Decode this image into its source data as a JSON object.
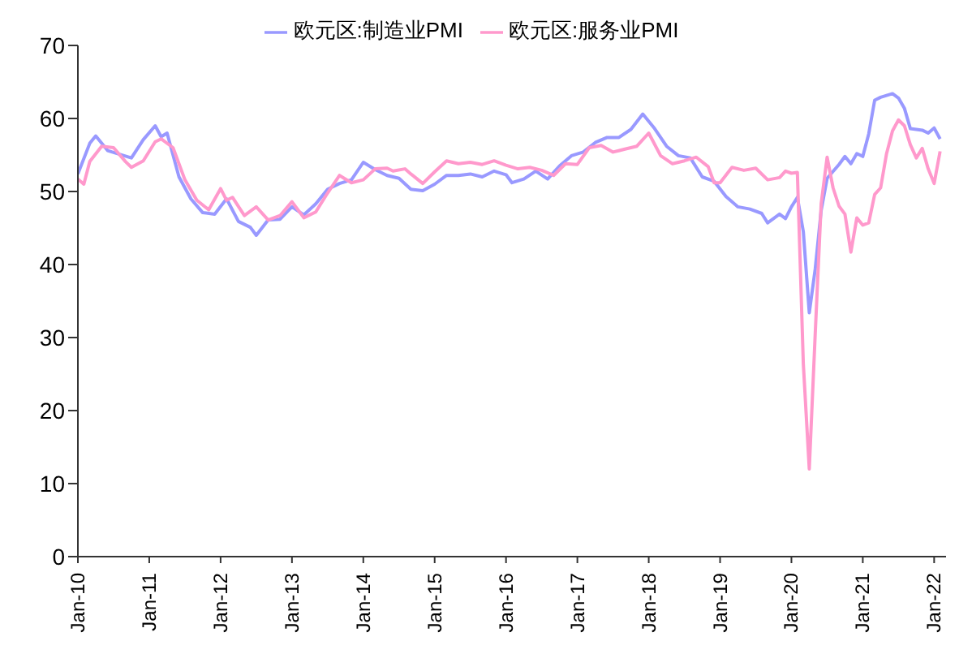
{
  "chart_data": {
    "type": "line",
    "legend": "top",
    "marker": "none",
    "line_style": "solid",
    "grid": false,
    "ylim": [
      0,
      70
    ],
    "yticks": [
      0,
      10,
      20,
      30,
      40,
      50,
      60,
      70
    ],
    "xlim": [
      "2010-01",
      "2022-03"
    ],
    "xticks": [
      {
        "value": "2010-01",
        "label": "Jan-10"
      },
      {
        "value": "2011-01",
        "label": "Jan-11"
      },
      {
        "value": "2012-01",
        "label": "Jan-12"
      },
      {
        "value": "2013-01",
        "label": "Jan-13"
      },
      {
        "value": "2014-01",
        "label": "Jan-14"
      },
      {
        "value": "2015-01",
        "label": "Jan-15"
      },
      {
        "value": "2016-01",
        "label": "Jan-16"
      },
      {
        "value": "2017-01",
        "label": "Jan-17"
      },
      {
        "value": "2018-01",
        "label": "Jan-18"
      },
      {
        "value": "2019-01",
        "label": "Jan-19"
      },
      {
        "value": "2020-01",
        "label": "Jan-20"
      },
      {
        "value": "2021-01",
        "label": "Jan-21"
      },
      {
        "value": "2022-01",
        "label": "Jan-22"
      }
    ],
    "series": [
      {
        "name": "欧元区:制造业PMI",
        "color": "#9999ff",
        "x": [
          "2010-01",
          "2010-03",
          "2010-04",
          "2010-06",
          "2010-08",
          "2010-10",
          "2010-12",
          "2011-02",
          "2011-03",
          "2011-04",
          "2011-06",
          "2011-08",
          "2011-10",
          "2011-12",
          "2012-02",
          "2012-04",
          "2012-06",
          "2012-07",
          "2012-09",
          "2012-11",
          "2013-01",
          "2013-03",
          "2013-05",
          "2013-07",
          "2013-09",
          "2013-11",
          "2014-01",
          "2014-03",
          "2014-05",
          "2014-07",
          "2014-09",
          "2014-11",
          "2015-01",
          "2015-03",
          "2015-05",
          "2015-07",
          "2015-09",
          "2015-11",
          "2016-01",
          "2016-02",
          "2016-04",
          "2016-06",
          "2016-08",
          "2016-10",
          "2016-12",
          "2017-02",
          "2017-04",
          "2017-06",
          "2017-08",
          "2017-10",
          "2017-12",
          "2018-02",
          "2018-04",
          "2018-06",
          "2018-08",
          "2018-10",
          "2018-12",
          "2019-02",
          "2019-04",
          "2019-06",
          "2019-08",
          "2019-09",
          "2019-11",
          "2019-12",
          "2020-01",
          "2020-02",
          "2020-03",
          "2020-04",
          "2020-05",
          "2020-06",
          "2020-07",
          "2020-09",
          "2020-10",
          "2020-11",
          "2020-12",
          "2021-01",
          "2021-02",
          "2021-03",
          "2021-04",
          "2021-06",
          "2021-07",
          "2021-08",
          "2021-09",
          "2021-11",
          "2021-12",
          "2022-01",
          "2022-02"
        ],
        "values": [
          52.4,
          56.6,
          57.6,
          55.6,
          55.1,
          54.6,
          57.1,
          59.0,
          57.5,
          58.0,
          52.0,
          49.0,
          47.1,
          46.9,
          49.0,
          45.9,
          45.1,
          44.0,
          46.1,
          46.2,
          47.9,
          46.8,
          48.3,
          50.3,
          51.1,
          51.6,
          54.0,
          53.0,
          52.2,
          51.8,
          50.3,
          50.1,
          51.0,
          52.2,
          52.2,
          52.4,
          52.0,
          52.8,
          52.3,
          51.2,
          51.7,
          52.8,
          51.7,
          53.5,
          54.9,
          55.4,
          56.7,
          57.4,
          57.4,
          58.5,
          60.6,
          58.6,
          56.2,
          54.9,
          54.6,
          52.0,
          51.4,
          49.3,
          47.9,
          47.6,
          47.0,
          45.7,
          46.9,
          46.3,
          47.9,
          49.2,
          44.5,
          33.4,
          39.4,
          47.4,
          51.8,
          53.7,
          54.8,
          53.8,
          55.2,
          54.8,
          57.9,
          62.5,
          62.9,
          63.4,
          62.8,
          61.4,
          58.6,
          58.4,
          58.0,
          58.7,
          57.2
        ]
      },
      {
        "name": "欧元区:服务业PMI",
        "color": "#ff99cc",
        "x": [
          "2010-01",
          "2010-02",
          "2010-03",
          "2010-05",
          "2010-07",
          "2010-09",
          "2010-10",
          "2010-12",
          "2011-02",
          "2011-03",
          "2011-05",
          "2011-07",
          "2011-09",
          "2011-11",
          "2012-01",
          "2012-02",
          "2012-03",
          "2012-05",
          "2012-07",
          "2012-09",
          "2012-11",
          "2013-01",
          "2013-03",
          "2013-05",
          "2013-07",
          "2013-09",
          "2013-11",
          "2014-01",
          "2014-03",
          "2014-05",
          "2014-06",
          "2014-08",
          "2014-09",
          "2014-11",
          "2015-01",
          "2015-03",
          "2015-05",
          "2015-07",
          "2015-09",
          "2015-11",
          "2016-01",
          "2016-03",
          "2016-05",
          "2016-07",
          "2016-09",
          "2016-11",
          "2017-01",
          "2017-03",
          "2017-05",
          "2017-07",
          "2017-09",
          "2017-11",
          "2018-01",
          "2018-03",
          "2018-05",
          "2018-07",
          "2018-09",
          "2018-11",
          "2018-12",
          "2019-01",
          "2019-03",
          "2019-05",
          "2019-07",
          "2019-09",
          "2019-11",
          "2019-12",
          "2020-01",
          "2020-02",
          "2020-03",
          "2020-04",
          "2020-05",
          "2020-06",
          "2020-07",
          "2020-08",
          "2020-09",
          "2020-10",
          "2020-11",
          "2020-12",
          "2021-01",
          "2021-02",
          "2021-03",
          "2021-04",
          "2021-05",
          "2021-06",
          "2021-07",
          "2021-08",
          "2021-09",
          "2021-10",
          "2021-11",
          "2021-12",
          "2022-01",
          "2022-02"
        ],
        "values": [
          51.7,
          51.0,
          54.1,
          56.2,
          56.0,
          54.1,
          53.3,
          54.2,
          56.8,
          57.2,
          56.0,
          51.6,
          48.8,
          47.5,
          50.4,
          48.8,
          49.2,
          46.7,
          47.9,
          46.1,
          46.7,
          48.6,
          46.4,
          47.2,
          49.8,
          52.2,
          51.2,
          51.6,
          53.1,
          53.2,
          52.8,
          53.1,
          52.4,
          51.1,
          52.7,
          54.2,
          53.8,
          54.0,
          53.7,
          54.2,
          53.6,
          53.1,
          53.3,
          52.9,
          52.2,
          53.8,
          53.7,
          56.0,
          56.3,
          55.4,
          55.8,
          56.2,
          58.0,
          54.9,
          53.8,
          54.2,
          54.7,
          53.4,
          51.2,
          51.2,
          53.3,
          52.9,
          53.2,
          51.6,
          51.9,
          52.8,
          52.5,
          52.6,
          26.4,
          12.0,
          30.5,
          48.3,
          54.7,
          50.5,
          48.0,
          46.9,
          41.7,
          46.4,
          45.4,
          45.7,
          49.6,
          50.5,
          55.2,
          58.3,
          59.8,
          59.0,
          56.4,
          54.6,
          55.9,
          53.1,
          51.1,
          55.5
        ]
      }
    ]
  }
}
